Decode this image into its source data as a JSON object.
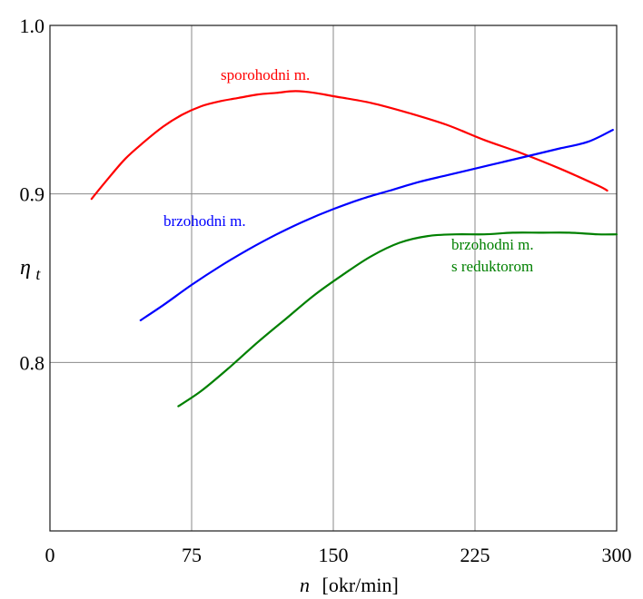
{
  "chart_data": {
    "type": "line",
    "xlabel": "n",
    "xlabel_unit": "[okr/min]",
    "ylabel": "η",
    "ylabel_subscript": "t",
    "xlim": [
      0,
      300
    ],
    "ylim": [
      0.7,
      1.0
    ],
    "xticks": [
      0,
      75,
      150,
      225,
      300
    ],
    "xtick_labels": [
      "0",
      "75",
      "150",
      "225",
      "300"
    ],
    "yticks": [
      0.8,
      0.9,
      1.0
    ],
    "ytick_labels": [
      "0.8",
      "0.9",
      "1.0"
    ],
    "grid": true,
    "series": [
      {
        "name": "sporohodni m.",
        "color": "#ff0000",
        "x": [
          22,
          30,
          40,
          50,
          60,
          70,
          80,
          90,
          100,
          110,
          120,
          130,
          140,
          150,
          170,
          190,
          210,
          230,
          250,
          270,
          290,
          295
        ],
        "y": [
          0.897,
          0.908,
          0.921,
          0.931,
          0.94,
          0.947,
          0.952,
          0.955,
          0.957,
          0.959,
          0.96,
          0.961,
          0.96,
          0.958,
          0.954,
          0.948,
          0.941,
          0.932,
          0.924,
          0.915,
          0.905,
          0.902
        ]
      },
      {
        "name": "brzohodni m.",
        "color": "#0000ff",
        "x": [
          48,
          60,
          75,
          90,
          105,
          120,
          135,
          150,
          165,
          180,
          195,
          210,
          225,
          240,
          255,
          270,
          285,
          298
        ],
        "y": [
          0.825,
          0.834,
          0.846,
          0.857,
          0.867,
          0.876,
          0.884,
          0.891,
          0.897,
          0.902,
          0.907,
          0.911,
          0.915,
          0.919,
          0.923,
          0.927,
          0.931,
          0.938
        ]
      },
      {
        "name": "brzohodni m.\ns reduktorom",
        "label_lines": [
          "brzohodni m.",
          "s reduktorom"
        ],
        "color": "#008000",
        "x": [
          68,
          80,
          95,
          110,
          125,
          140,
          155,
          170,
          185,
          200,
          215,
          230,
          245,
          260,
          275,
          290,
          300
        ],
        "y": [
          0.774,
          0.783,
          0.797,
          0.812,
          0.826,
          0.84,
          0.852,
          0.863,
          0.871,
          0.875,
          0.876,
          0.876,
          0.877,
          0.877,
          0.877,
          0.876,
          0.876
        ]
      }
    ]
  }
}
